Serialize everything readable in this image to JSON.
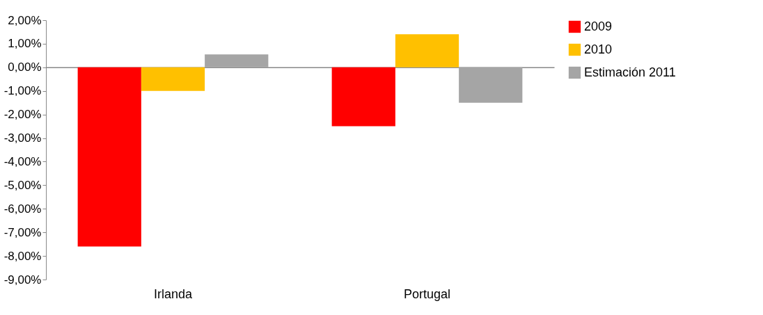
{
  "chart_data": {
    "type": "bar",
    "categories": [
      "Irlanda",
      "Portugal"
    ],
    "series": [
      {
        "name": "2009",
        "color": "#ff0000",
        "values": [
          -7.6,
          -2.5
        ]
      },
      {
        "name": "2010",
        "color": "#ffc000",
        "values": [
          -1.0,
          1.4
        ]
      },
      {
        "name": "Estimación 2011",
        "color": "#a5a5a5",
        "values": [
          0.55,
          -1.5
        ]
      }
    ],
    "ylim": [
      -9,
      2
    ],
    "yticks": [
      {
        "value": 2,
        "label": "2,00%"
      },
      {
        "value": 1,
        "label": "1,00%"
      },
      {
        "value": 0,
        "label": "0,00%"
      },
      {
        "value": -1,
        "label": "-1,00%"
      },
      {
        "value": -2,
        "label": "-2,00%"
      },
      {
        "value": -3,
        "label": "-3,00%"
      },
      {
        "value": -4,
        "label": "-4,00%"
      },
      {
        "value": -5,
        "label": "-5,00%"
      },
      {
        "value": -6,
        "label": "-6,00%"
      },
      {
        "value": -7,
        "label": "-7,00%"
      },
      {
        "value": -8,
        "label": "-8,00%"
      },
      {
        "value": -9,
        "label": "-9,00%"
      }
    ],
    "legend": "right"
  }
}
